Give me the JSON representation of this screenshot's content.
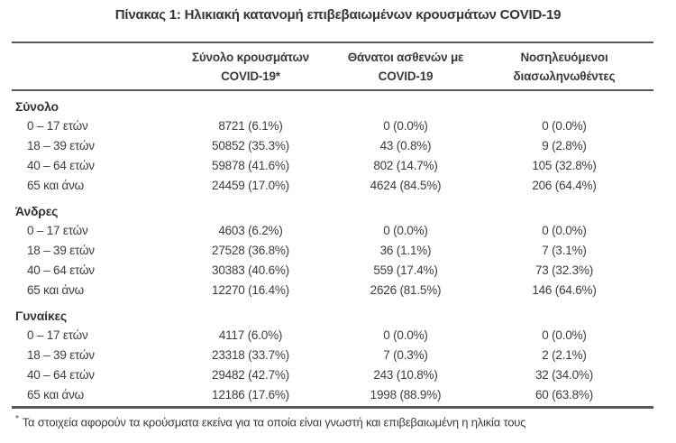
{
  "title": "Πίνακας 1: Ηλικιακή κατανομή επιβεβαιωμένων κρουσμάτων COVID-19",
  "table": {
    "headers": [
      {
        "line1": "Σύνολο κρουσμάτων",
        "line2": "COVID-19*"
      },
      {
        "line1": "Θάνατοι ασθενών με",
        "line2": "COVID-19"
      },
      {
        "line1": "Νοσηλευόμενοι",
        "line2": "διασωληνωθέντες"
      }
    ],
    "sections": [
      {
        "label": "Σύνολο",
        "rows": [
          {
            "age": "0 – 17 ετών",
            "cases": "8721 (6.1%)",
            "deaths": "0 (0.0%)",
            "intubated": "0 (0.0%)"
          },
          {
            "age": "18 – 39 ετών",
            "cases": "50852 (35.3%)",
            "deaths": "43 (0.8%)",
            "intubated": "9 (2.8%)"
          },
          {
            "age": "40 – 64 ετών",
            "cases": "59878 (41.6%)",
            "deaths": "802 (14.7%)",
            "intubated": "105 (32.8%)"
          },
          {
            "age": "65 και άνω",
            "cases": "24459 (17.0%)",
            "deaths": "4624 (84.5%)",
            "intubated": "206 (64.4%)"
          }
        ]
      },
      {
        "label": "Άνδρες",
        "rows": [
          {
            "age": "0 – 17 ετών",
            "cases": "4603 (6.2%)",
            "deaths": "0 (0.0%)",
            "intubated": "0 (0.0%)"
          },
          {
            "age": "18 – 39 ετών",
            "cases": "27528 (36.8%)",
            "deaths": "36 (1.1%)",
            "intubated": "7 (3.1%)"
          },
          {
            "age": "40 – 64 ετών",
            "cases": "30383 (40.6%)",
            "deaths": "559 (17.4%)",
            "intubated": "73 (32.3%)"
          },
          {
            "age": "65 και άνω",
            "cases": "12270 (16.4%)",
            "deaths": "2626 (81.5%)",
            "intubated": "146 (64.6%)"
          }
        ]
      },
      {
        "label": "Γυναίκες",
        "rows": [
          {
            "age": "0 – 17 ετών",
            "cases": "4117 (6.0%)",
            "deaths": "0 (0.0%)",
            "intubated": "0 (0.0%)"
          },
          {
            "age": "18 – 39 ετών",
            "cases": "23318 (33.7%)",
            "deaths": "7 (0.3%)",
            "intubated": "2 (2.1%)"
          },
          {
            "age": "40 – 64 ετών",
            "cases": "29482 (42.7%)",
            "deaths": "243 (10.8%)",
            "intubated": "32 (34.0%)"
          },
          {
            "age": "65 και άνω",
            "cases": "12186 (17.6%)",
            "deaths": "1998 (88.9%)",
            "intubated": "60 (63.8%)"
          }
        ]
      }
    ]
  },
  "footnote": {
    "marker": "*",
    "text": "Τα στοιχεία αφορούν τα κρούσματα εκείνα για τα οποία είναι γνωστή και επιβεβαιωμένη η ηλικία τους"
  },
  "colors": {
    "text": "#3c3c3c",
    "rule": "#57585a"
  }
}
